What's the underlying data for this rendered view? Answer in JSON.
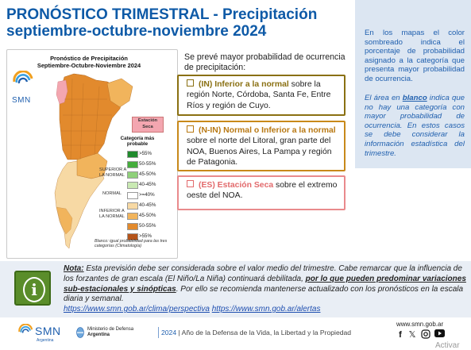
{
  "title": {
    "line1": "PRONÓSTICO TRIMESTRAL - Precipitación",
    "line2": "septiembre-octubre-noviembre 2024"
  },
  "info_box": {
    "p1": "En los mapas el color sombreado indica el porcentaje de probabilidad asignado a la categoría que presenta mayor probabilidad de ocurrencia.",
    "p2_before": "El área en ",
    "p2_emph": "blanco",
    "p2_after": " indica que no hay una categoría con mayor probabilidad de ocurrencia. En estos casos se debe considerar la información estadística del trimestre."
  },
  "map": {
    "title_line1": "Pronóstico de Precipitación",
    "title_line2": "Septiembre-Octubre-Noviembre 2024",
    "logo_text": "SMN",
    "legend_title": "Categoría más probable",
    "station_label": "Estación Seca",
    "legend_items": [
      {
        "label": ">55%",
        "color": "#1f8a2c"
      },
      {
        "label": "50-55%",
        "color": "#45ad3c"
      },
      {
        "label": "45-50%",
        "color": "#8fd07a"
      },
      {
        "label": "40-45%",
        "color": "#c9e9b3"
      },
      {
        "label": ">=40%",
        "color": "#ffffff"
      },
      {
        "label": "40-45%",
        "color": "#f7d9a4"
      },
      {
        "label": "45-50%",
        "color": "#f1b45c"
      },
      {
        "label": "50-55%",
        "color": "#e28a2d"
      },
      {
        "label": ">55%",
        "color": "#b5541a"
      }
    ],
    "cat_superior": "SUPERIOR A LA NORMAL",
    "cat_normal": "NORMAL",
    "cat_inferior": "INFERIOR A LA NORMAL",
    "footnote": "Blanco: igual probabilidad para las tres categorías (Climatología)",
    "colors": {
      "dark": "#e28a2d",
      "mid": "#f1b45c",
      "light": "#f7d9a4",
      "dry": "#f3a6b0"
    }
  },
  "intro": "Se prevé mayor probabilidad de ocurrencia de precipitación:",
  "forecast": [
    {
      "label": "(IN) Inferior a la normal",
      "text": " sobre la región Norte, Córdoba, Santa Fe, Entre Ríos y región de Cuyo."
    },
    {
      "label": "(N-IN) Normal o Inferior a la normal",
      "text": " sobre el norte del Litoral, gran parte del NOA, Buenos Aires, La Pampa y región de Patagonia."
    },
    {
      "label": "(ES) Estación Seca",
      "text": " sobre el extremo oeste del NOA."
    }
  ],
  "note": {
    "label": "Nota:",
    "text1": " Esta previsión debe ser considerada sobre el valor medio del trimestre. Cabe remarcar que la influencia de los forzantes de gran escala (El Niño/La Niña) continuará debilitada, ",
    "emph": "por lo que pueden predominar variaciones sub-estacionales y sinópticas",
    "text2": ". Por ello se recomienda mantenerse actualizado con los pronósticos en la escala diaria y semanal.",
    "link1": "https://www.smn.gob.ar/clima/perspectiva",
    "link2": "https://www.smn.gob.ar/alertas"
  },
  "footer": {
    "logo": "SMN",
    "logo_sub": "Argentina",
    "ministry": "Ministerio de Defensa",
    "ministry_country": "Argentina",
    "year": "2024",
    "motto": "Año de la Defensa de la Vida, la Libertad y la Propiedad",
    "website": "www.smn.gob.ar",
    "activate": "Activar"
  }
}
